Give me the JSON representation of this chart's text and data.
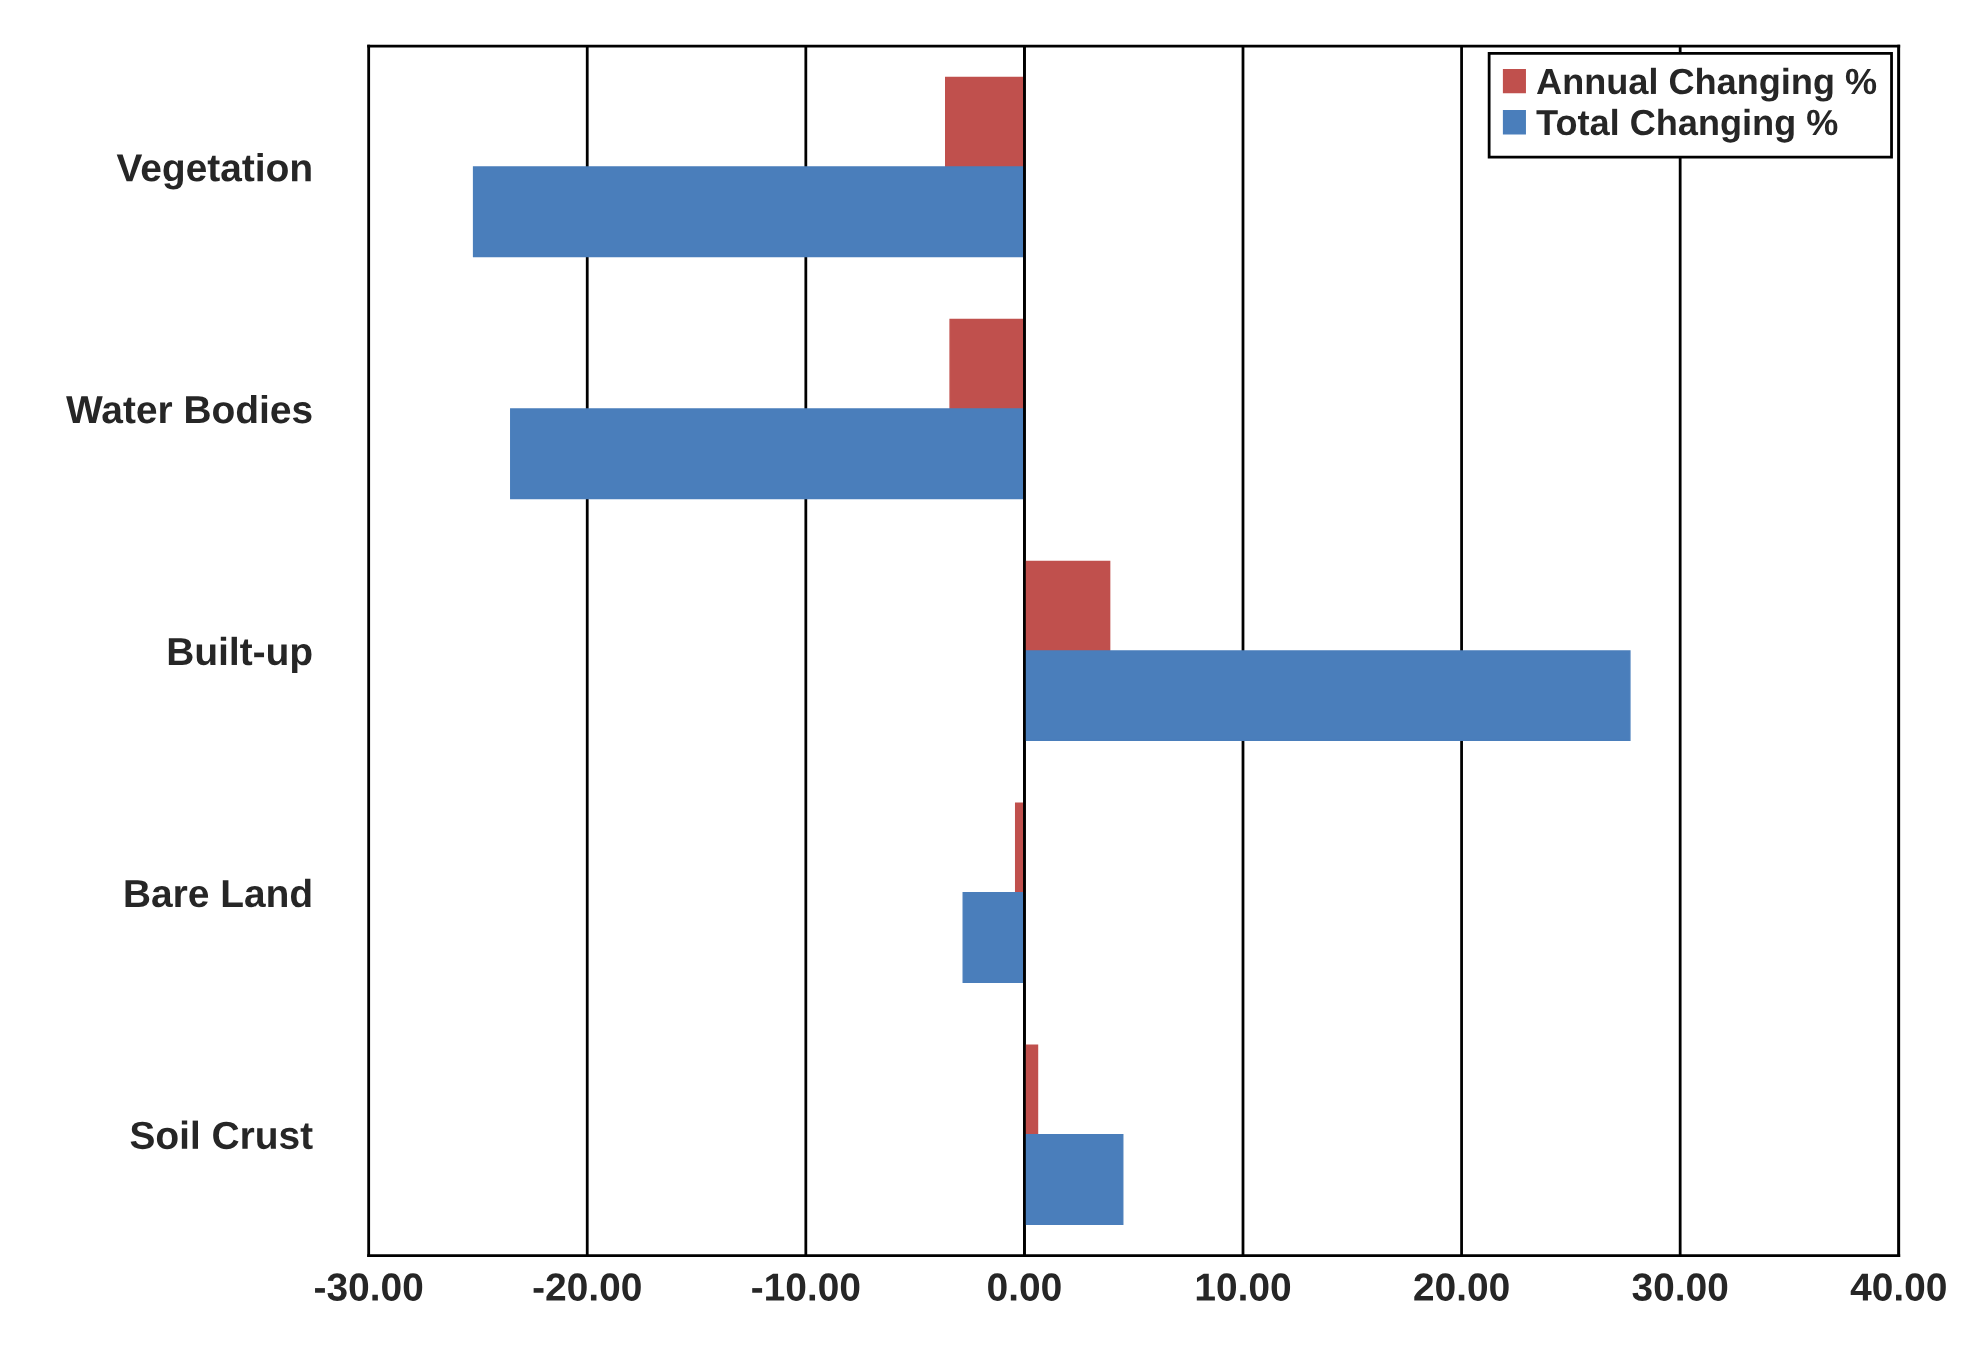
{
  "chart_data": {
    "type": "bar",
    "orientation": "horizontal",
    "categories": [
      "Vegetation",
      "Water Bodies",
      "Built-up",
      "Bare Land",
      "Soil Crust"
    ],
    "series": [
      {
        "name": "Annual Changing %",
        "color": "#c0504d",
        "values": [
          -3.6,
          -3.4,
          3.9,
          -0.4,
          0.6
        ]
      },
      {
        "name": "Total Changing %",
        "color": "#4a7ebb",
        "values": [
          -25.2,
          -23.5,
          27.7,
          -2.8,
          4.5
        ]
      }
    ],
    "xlim": [
      -30,
      40
    ],
    "xticks": [
      {
        "value": -30,
        "label": "-30.00"
      },
      {
        "value": -20,
        "label": "-20.00"
      },
      {
        "value": -10,
        "label": "-10.00"
      },
      {
        "value": 0,
        "label": "0.00"
      },
      {
        "value": 10,
        "label": "10.00"
      },
      {
        "value": 20,
        "label": "20.00"
      },
      {
        "value": 30,
        "label": "30.00"
      },
      {
        "value": 40,
        "label": "40.00"
      }
    ],
    "grid": "x",
    "legend": "top right"
  }
}
